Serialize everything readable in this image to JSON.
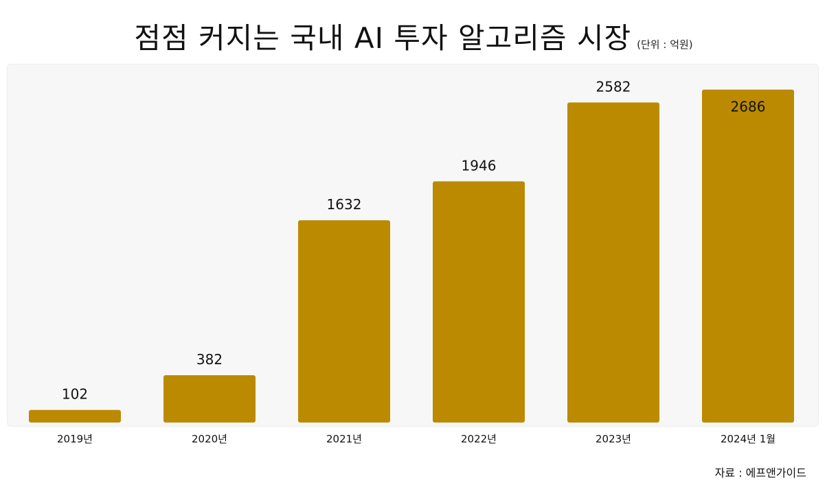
{
  "title": "점점 커지는 국내 AI 투자 알고리즘 시장",
  "unit_note": "(단위 : 억원)",
  "source": "자료 : 에프앤가이드",
  "colors": {
    "bar": "#bb8a00",
    "panel": "#f7f7f7",
    "text": "#111111"
  },
  "chart_data": {
    "type": "bar",
    "title": "점점 커지는 국내 AI 투자 알고리즘 시장",
    "unit": "(단위 : 억원)",
    "categories": [
      "2019년",
      "2020년",
      "2021년",
      "2022년",
      "2023년",
      "2024년 1월"
    ],
    "values": [
      102,
      382,
      1632,
      1946,
      2582,
      2686
    ],
    "ylim": [
      0,
      2800
    ],
    "grid": false,
    "legend": "none"
  }
}
